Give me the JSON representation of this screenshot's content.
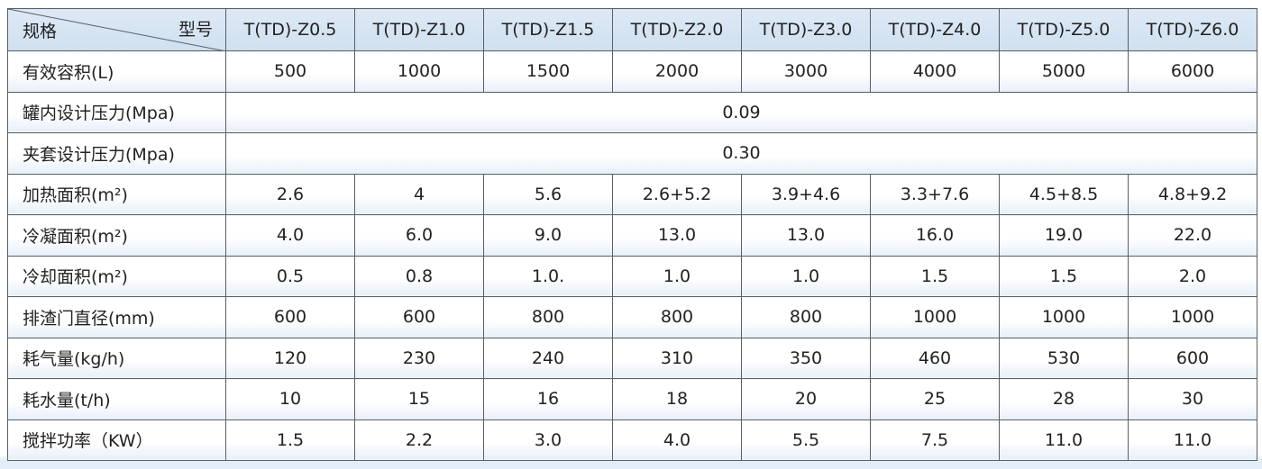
{
  "table": {
    "corner": {
      "row_label": "规格",
      "col_label": "型号"
    },
    "columns": [
      "T(TD)-Z0.5",
      "T(TD)-Z1.0",
      "T(TD)-Z1.5",
      "T(TD)-Z2.0",
      "T(TD)-Z3.0",
      "T(TD)-Z4.0",
      "T(TD)-Z5.0",
      "T(TD)-Z6.0"
    ],
    "rows": [
      {
        "label": "有效容积(L)",
        "cells": [
          "500",
          "1000",
          "1500",
          "2000",
          "3000",
          "4000",
          "5000",
          "6000"
        ]
      },
      {
        "label": "罐内设计压力(Mpa)",
        "cells": [
          "0.09"
        ]
      },
      {
        "label": "夹套设计压力(Mpa)",
        "cells": [
          "0.30"
        ]
      },
      {
        "label": "加热面积(m²)",
        "cells": [
          "2.6",
          "4",
          "5.6",
          "2.6+5.2",
          "3.9+4.6",
          "3.3+7.6",
          "4.5+8.5",
          "4.8+9.2"
        ]
      },
      {
        "label": "冷凝面积(m²)",
        "cells": [
          "4.0",
          "6.0",
          "9.0",
          "13.0",
          "13.0",
          "16.0",
          "19.0",
          "22.0"
        ]
      },
      {
        "label": "冷却面积(m²)",
        "cells": [
          "0.5",
          "0.8",
          "1.0.",
          "1.0",
          "1.0",
          "1.5",
          "1.5",
          "2.0"
        ]
      },
      {
        "label": "排渣门直径(mm)",
        "cells": [
          "600",
          "600",
          "800",
          "800",
          "800",
          "1000",
          "1000",
          "1000"
        ]
      },
      {
        "label": "耗气量(kg/h)",
        "cells": [
          "120",
          "230",
          "240",
          "310",
          "350",
          "460",
          "530",
          "600"
        ]
      },
      {
        "label": "耗水量(t/h)",
        "cells": [
          "10",
          "15",
          "16",
          "18",
          "20",
          "25",
          "28",
          "30"
        ]
      },
      {
        "label": "搅拌功率（KW）",
        "cells": [
          "1.5",
          "2.2",
          "3.0",
          "4.0",
          "5.5",
          "7.5",
          "11.0",
          "11.0"
        ]
      }
    ]
  }
}
